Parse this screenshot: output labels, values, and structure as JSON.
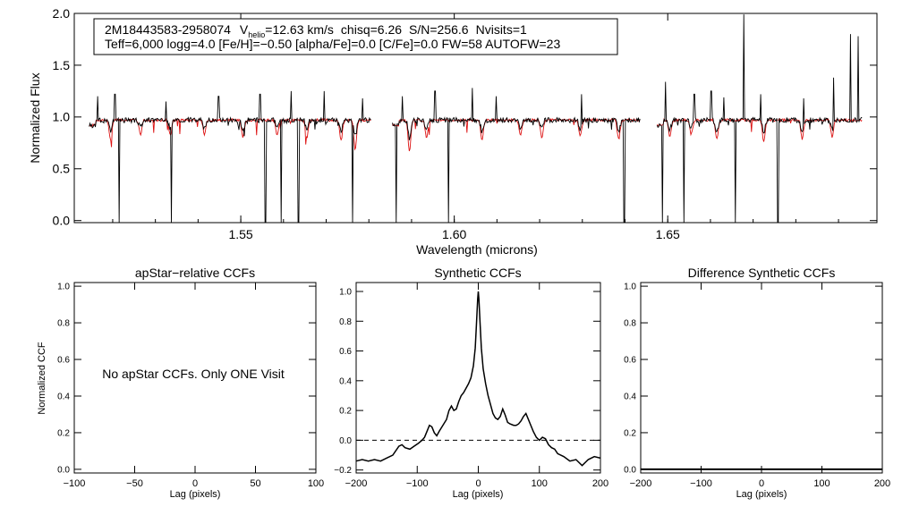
{
  "colors": {
    "observed": "#000000",
    "model": "#dd1111",
    "axis": "#000000"
  },
  "header": {
    "line1": {
      "star_id": "2M18443583-2958074",
      "vhelio_prefix": "V",
      "vhelio_sub": "helio",
      "vhelio_value": "=12.63 km/s",
      "chisq": "chisq=6.26",
      "snr": "S/N=256.6",
      "nvisits": "Nvisits=1"
    },
    "line2": "Teff=6,000 logg=4.0 [Fe/H]=−0.50 [alpha/Fe]=0.0 [C/Fe]=0.0 FW=58 AUTOFW=23"
  },
  "note": "No apStar CCFs.  Only ONE Visit",
  "chart_data": [
    {
      "id": "spectrum",
      "type": "line",
      "title": "",
      "xlabel": "Wavelength (microns)",
      "ylabel": "Normalized Flux",
      "xlim": [
        1.511,
        1.699
      ],
      "ylim": [
        -0.02,
        2.0
      ],
      "x_ticks": [
        1.55,
        1.6,
        1.65
      ],
      "x_tick_labels": [
        "1.55",
        "1.60",
        "1.65"
      ],
      "y_ticks": [
        0.0,
        0.5,
        1.0,
        1.5,
        2.0
      ],
      "y_tick_labels": [
        "0.0",
        "0.5",
        "1.0",
        "1.5",
        "2.0"
      ],
      "chips": [
        [
          1.5145,
          1.5805
        ],
        [
          1.5855,
          1.6435
        ],
        [
          1.6475,
          1.6955
        ]
      ],
      "continuum": 0.97,
      "series": [
        {
          "name": "observed",
          "color": "#000000"
        },
        {
          "name": "model",
          "color": "#dd1111"
        }
      ],
      "bad_pixels": [
        1.5215,
        1.5338,
        1.5558,
        1.5595,
        1.5635,
        1.5762,
        1.5864,
        1.5986,
        1.6398,
        1.6488,
        1.6538,
        1.6658,
        1.6758
      ],
      "emission_spikes": [
        {
          "x": 1.5165,
          "y": 1.2
        },
        {
          "x": 1.5205,
          "y": 1.22
        },
        {
          "x": 1.5325,
          "y": 1.15
        },
        {
          "x": 1.5448,
          "y": 1.2
        },
        {
          "x": 1.5545,
          "y": 1.22
        },
        {
          "x": 1.5618,
          "y": 1.25
        },
        {
          "x": 1.5695,
          "y": 1.25
        },
        {
          "x": 1.5785,
          "y": 1.18
        },
        {
          "x": 1.5878,
          "y": 1.2
        },
        {
          "x": 1.5955,
          "y": 1.25
        },
        {
          "x": 1.6042,
          "y": 1.28
        },
        {
          "x": 1.6098,
          "y": 1.2
        },
        {
          "x": 1.6298,
          "y": 1.22
        },
        {
          "x": 1.6438,
          "y": 1.28
        },
        {
          "x": 1.6495,
          "y": 1.34
        },
        {
          "x": 1.6562,
          "y": 1.22
        },
        {
          "x": 1.6602,
          "y": 1.25
        },
        {
          "x": 1.6632,
          "y": 1.19
        },
        {
          "x": 1.6678,
          "y": 1.99
        },
        {
          "x": 1.6718,
          "y": 1.22
        },
        {
          "x": 1.6818,
          "y": 1.18
        },
        {
          "x": 1.6888,
          "y": 1.38
        },
        {
          "x": 1.6928,
          "y": 1.8
        },
        {
          "x": 1.6946,
          "y": 1.78
        }
      ],
      "absorption_lines": [
        {
          "x": 1.5195,
          "y": 0.82
        },
        {
          "x": 1.5265,
          "y": 0.86
        },
        {
          "x": 1.5335,
          "y": 0.85
        },
        {
          "x": 1.5415,
          "y": 0.86
        },
        {
          "x": 1.5505,
          "y": 0.84
        },
        {
          "x": 1.5585,
          "y": 0.86
        },
        {
          "x": 1.5655,
          "y": 0.84
        },
        {
          "x": 1.5735,
          "y": 0.82
        },
        {
          "x": 1.5768,
          "y": 0.74
        },
        {
          "x": 1.5895,
          "y": 0.72
        },
        {
          "x": 1.5935,
          "y": 0.84
        },
        {
          "x": 1.6065,
          "y": 0.82
        },
        {
          "x": 1.6155,
          "y": 0.86
        },
        {
          "x": 1.6205,
          "y": 0.84
        },
        {
          "x": 1.6295,
          "y": 0.85
        },
        {
          "x": 1.6385,
          "y": 0.82
        },
        {
          "x": 1.6505,
          "y": 0.84
        },
        {
          "x": 1.6555,
          "y": 0.86
        },
        {
          "x": 1.6615,
          "y": 0.82
        },
        {
          "x": 1.6725,
          "y": 0.8
        },
        {
          "x": 1.6815,
          "y": 0.82
        },
        {
          "x": 1.6885,
          "y": 0.84
        }
      ]
    },
    {
      "id": "apstar_ccf",
      "type": "line",
      "title": "apStar−relative CCFs",
      "xlabel": "Lag (pixels)",
      "ylabel": "Normalized CCF",
      "xlim": [
        -100,
        100
      ],
      "ylim": [
        -0.02,
        1.02
      ],
      "x_ticks": [
        -100,
        -50,
        0,
        50,
        100
      ],
      "x_tick_labels": [
        "−100",
        "−50",
        "0",
        "50",
        "100"
      ],
      "y_ticks": [
        0.0,
        0.2,
        0.4,
        0.6,
        0.8,
        1.0
      ],
      "y_tick_labels": [
        "0.0",
        "0.2",
        "0.4",
        "0.6",
        "0.8",
        "1.0"
      ],
      "series": []
    },
    {
      "id": "synthetic_ccf",
      "type": "line",
      "title": "Synthetic CCFs",
      "xlabel": "Lag (pixels)",
      "ylabel": "",
      "xlim": [
        -200,
        200
      ],
      "ylim": [
        -0.22,
        1.06
      ],
      "x_ticks": [
        -200,
        -100,
        0,
        100,
        200
      ],
      "x_tick_labels": [
        "−200",
        "−100",
        "0",
        "100",
        "200"
      ],
      "y_ticks": [
        -0.2,
        0.0,
        0.2,
        0.4,
        0.6,
        0.8,
        1.0
      ],
      "y_tick_labels": [
        "−0.2",
        "0.0",
        "0.2",
        "0.4",
        "0.6",
        "0.8",
        "1.0"
      ],
      "hline": 0.0,
      "series": [
        {
          "name": "synthetic CCF",
          "x": [
            -200,
            -190,
            -180,
            -170,
            -160,
            -150,
            -140,
            -130,
            -125,
            -120,
            -112,
            -105,
            -98,
            -92,
            -88,
            -84,
            -80,
            -76,
            -72,
            -68,
            -64,
            -58,
            -52,
            -48,
            -44,
            -40,
            -36,
            -32,
            -28,
            -24,
            -20,
            -16,
            -12,
            -8,
            -5,
            -3,
            -1,
            0,
            1,
            3,
            5,
            8,
            12,
            16,
            20,
            24,
            28,
            32,
            36,
            40,
            44,
            48,
            52,
            58,
            62,
            66,
            70,
            74,
            78,
            82,
            86,
            90,
            95,
            100,
            105,
            110,
            115,
            120,
            125,
            130,
            140,
            150,
            160,
            170,
            180,
            190,
            200
          ],
          "y": [
            -0.14,
            -0.13,
            -0.14,
            -0.13,
            -0.14,
            -0.12,
            -0.1,
            -0.04,
            -0.03,
            -0.05,
            -0.06,
            -0.04,
            -0.02,
            0.0,
            0.02,
            0.06,
            0.1,
            0.09,
            0.05,
            0.03,
            0.06,
            0.1,
            0.14,
            0.2,
            0.23,
            0.2,
            0.21,
            0.26,
            0.3,
            0.32,
            0.35,
            0.38,
            0.42,
            0.5,
            0.62,
            0.78,
            0.95,
            1.0,
            0.95,
            0.78,
            0.62,
            0.48,
            0.38,
            0.3,
            0.24,
            0.18,
            0.15,
            0.14,
            0.16,
            0.21,
            0.17,
            0.12,
            0.11,
            0.1,
            0.1,
            0.11,
            0.13,
            0.16,
            0.18,
            0.14,
            0.1,
            0.06,
            0.02,
            0.0,
            0.02,
            0.01,
            -0.03,
            -0.05,
            -0.06,
            -0.09,
            -0.11,
            -0.14,
            -0.13,
            -0.17,
            -0.13,
            -0.11,
            -0.12
          ]
        }
      ]
    },
    {
      "id": "difference_ccf",
      "type": "line",
      "title": "Difference Synthetic CCFs",
      "xlabel": "Lag (pixels)",
      "ylabel": "",
      "xlim": [
        -200,
        200
      ],
      "ylim": [
        -0.02,
        1.02
      ],
      "x_ticks": [
        -200,
        -100,
        0,
        100,
        200
      ],
      "x_tick_labels": [
        "−200",
        "−100",
        "0",
        "100",
        "200"
      ],
      "y_ticks": [
        0.0,
        0.2,
        0.4,
        0.6,
        0.8,
        1.0
      ],
      "y_tick_labels": [
        "0.0",
        "0.2",
        "0.4",
        "0.6",
        "0.8",
        "1.0"
      ],
      "series": [
        {
          "name": "difference",
          "x": [
            -200,
            200
          ],
          "y": [
            0.0,
            0.0
          ]
        }
      ]
    }
  ]
}
